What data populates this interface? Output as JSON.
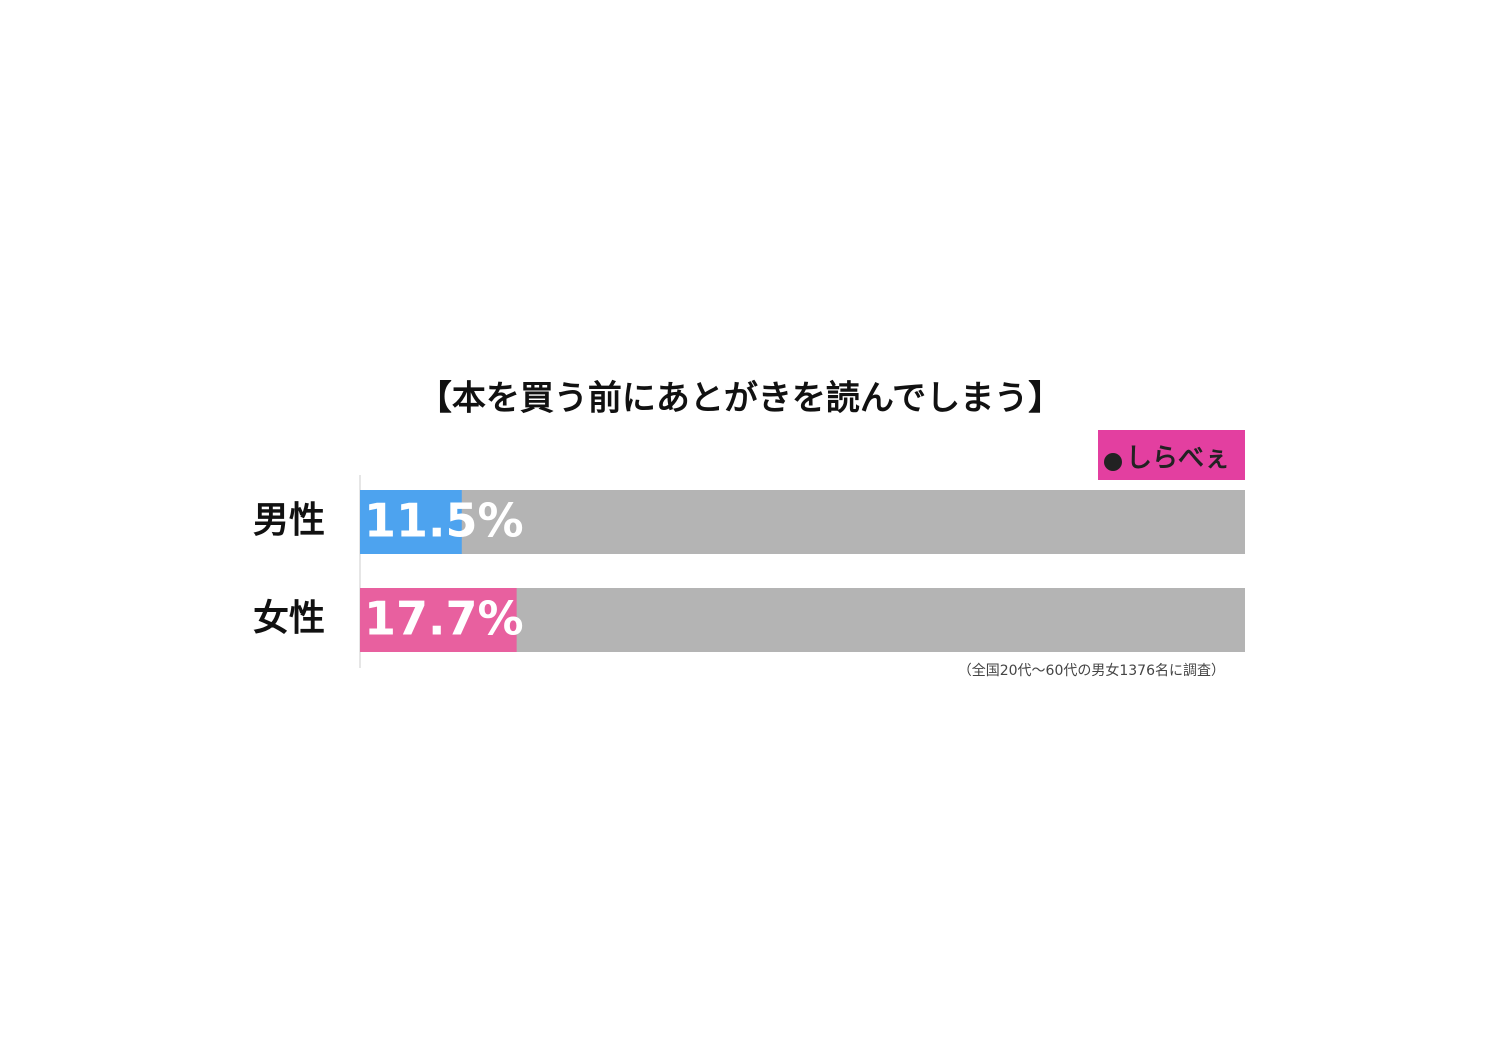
{
  "chart_data": {
    "type": "barh",
    "title": "【本を買う前にあとがきを読んでしまう】",
    "logo": "しらべぇ",
    "note": "（全国20代〜60代の男女1376名に調査）",
    "categories": [
      "男性",
      "女性"
    ],
    "values": [
      11.5,
      17.7
    ],
    "value_labels": [
      "11.5%",
      "17.7%"
    ],
    "colors": [
      "#4da3ef",
      "#e8609f"
    ],
    "track_color": "#b4b4b4",
    "xlim": [
      0,
      100
    ]
  }
}
